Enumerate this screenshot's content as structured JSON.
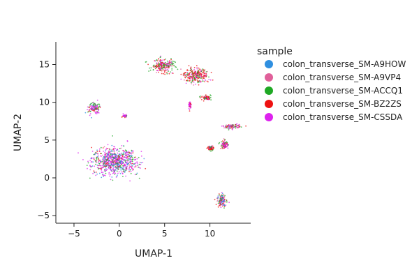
{
  "chart_data": {
    "type": "scatter",
    "xlabel": "UMAP-1",
    "ylabel": "UMAP-2",
    "xlim": [
      -7,
      14.5
    ],
    "ylim": [
      -6,
      18
    ],
    "xticks": [
      -5,
      0,
      5,
      10
    ],
    "yticks": [
      -5,
      0,
      5,
      10,
      15
    ],
    "grid": false,
    "legend": {
      "title": "sample",
      "placement": "right"
    },
    "series": [
      {
        "name": "colon_transverse_SM-A9HOW",
        "color": "#2f8fe0"
      },
      {
        "name": "colon_transverse_SM-A9VP4",
        "color": "#e0609a"
      },
      {
        "name": "colon_transverse_SM-ACCQ1",
        "color": "#1fa824"
      },
      {
        "name": "colon_transverse_SM-BZ2ZS",
        "color": "#ee1111"
      },
      {
        "name": "colon_transverse_SM-CSSDA",
        "color": "#dd22ee"
      }
    ],
    "clusters": [
      {
        "center": [
          -0.5,
          2.2
        ],
        "spread": [
          2.2,
          1.6
        ],
        "weights": [
          0.22,
          0.08,
          0.18,
          0.12,
          0.4
        ]
      },
      {
        "center": [
          -2.8,
          9.2
        ],
        "spread": [
          0.6,
          0.6
        ],
        "weights": [
          0.05,
          0.1,
          0.35,
          0.1,
          0.4
        ]
      },
      {
        "center": [
          0.6,
          8.2
        ],
        "spread": [
          0.25,
          0.15
        ],
        "weights": [
          0,
          0,
          0.3,
          0.2,
          0.5
        ]
      },
      {
        "center": [
          4.8,
          14.8
        ],
        "spread": [
          1.1,
          0.8
        ],
        "weights": [
          0,
          0.1,
          0.3,
          0.4,
          0.2
        ]
      },
      {
        "center": [
          8.5,
          13.6
        ],
        "spread": [
          1.2,
          0.9
        ],
        "weights": [
          0,
          0.1,
          0.2,
          0.5,
          0.2
        ]
      },
      {
        "center": [
          7.8,
          9.6
        ],
        "spread": [
          0.12,
          0.5
        ],
        "weights": [
          0,
          0.1,
          0,
          0.2,
          0.7
        ]
      },
      {
        "center": [
          9.6,
          10.6
        ],
        "spread": [
          0.5,
          0.25
        ],
        "weights": [
          0,
          0,
          0.3,
          0.5,
          0.2
        ]
      },
      {
        "center": [
          12.4,
          6.8
        ],
        "spread": [
          0.8,
          0.3
        ],
        "weights": [
          0,
          0.1,
          0.3,
          0.2,
          0.4
        ]
      },
      {
        "center": [
          11.6,
          4.4
        ],
        "spread": [
          0.4,
          0.5
        ],
        "weights": [
          0,
          0.1,
          0.2,
          0.3,
          0.4
        ]
      },
      {
        "center": [
          10.1,
          3.9
        ],
        "spread": [
          0.3,
          0.3
        ],
        "weights": [
          0,
          0,
          0.3,
          0.5,
          0.2
        ]
      },
      {
        "center": [
          11.3,
          -3.0
        ],
        "spread": [
          0.45,
          0.8
        ],
        "weights": [
          0.35,
          0.05,
          0.15,
          0.25,
          0.2
        ]
      }
    ]
  }
}
